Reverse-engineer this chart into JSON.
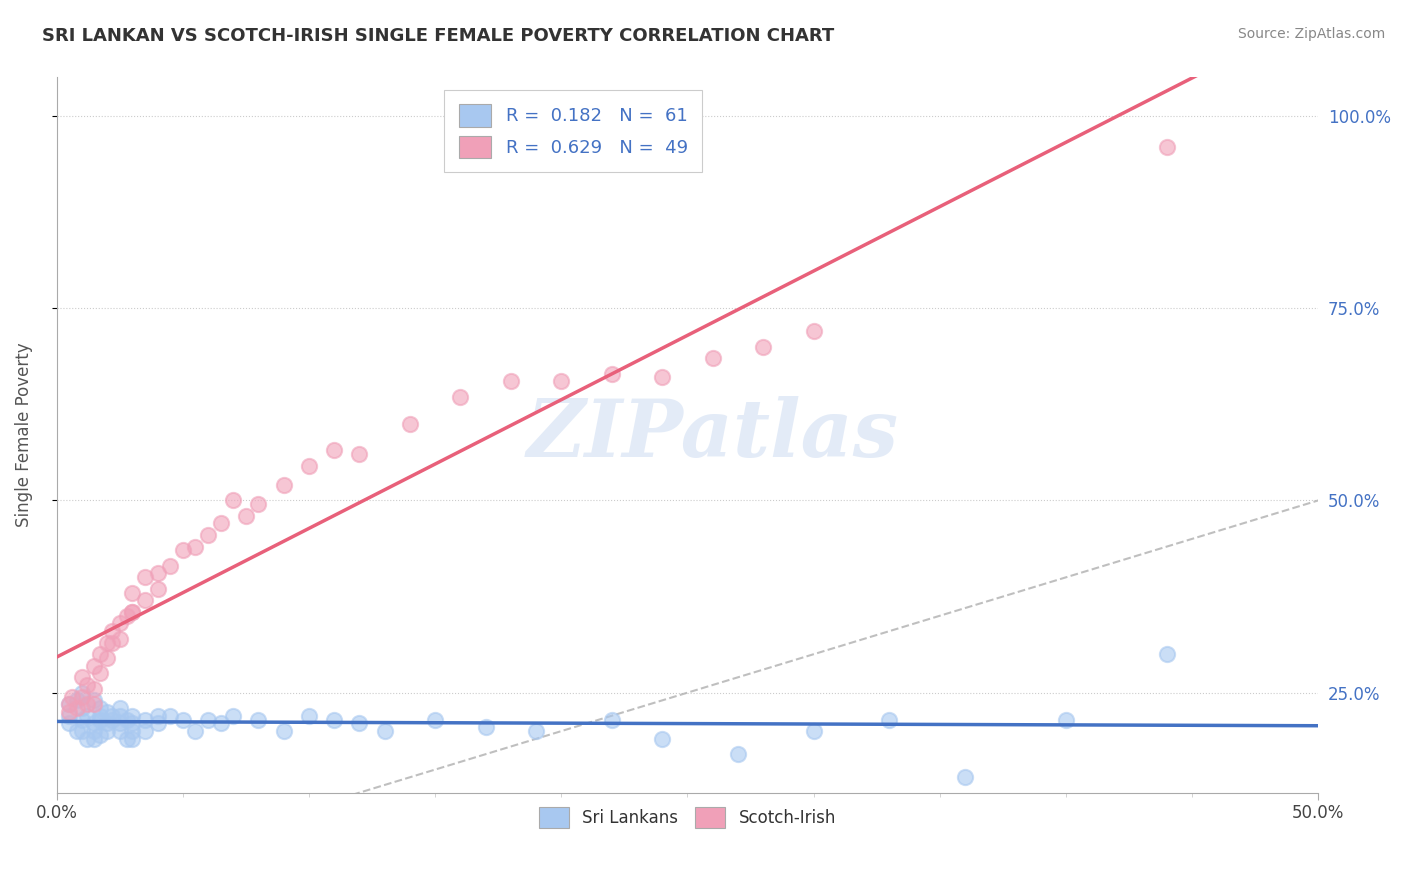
{
  "title": "SRI LANKAN VS SCOTCH-IRISH SINGLE FEMALE POVERTY CORRELATION CHART",
  "source": "Source: ZipAtlas.com",
  "ylabel": "Single Female Poverty",
  "xlim": [
    0.0,
    0.5
  ],
  "ylim": [
    0.12,
    1.05
  ],
  "sri_lankan_R": 0.182,
  "sri_lankan_N": 61,
  "scotch_irish_R": 0.629,
  "scotch_irish_N": 49,
  "sri_lankan_color": "#a8c8f0",
  "scotch_irish_color": "#f0a0b8",
  "sri_lankan_line_color": "#4472c4",
  "scotch_irish_line_color": "#e8607a",
  "watermark_color": "#c8d8f0",
  "sri_lankans_x": [
    0.005,
    0.005,
    0.005,
    0.008,
    0.008,
    0.01,
    0.01,
    0.01,
    0.01,
    0.012,
    0.012,
    0.015,
    0.015,
    0.015,
    0.015,
    0.017,
    0.017,
    0.017,
    0.017,
    0.02,
    0.02,
    0.02,
    0.022,
    0.022,
    0.025,
    0.025,
    0.025,
    0.025,
    0.028,
    0.028,
    0.03,
    0.03,
    0.03,
    0.03,
    0.035,
    0.035,
    0.04,
    0.04,
    0.045,
    0.05,
    0.055,
    0.06,
    0.065,
    0.07,
    0.08,
    0.09,
    0.1,
    0.11,
    0.12,
    0.13,
    0.15,
    0.17,
    0.19,
    0.22,
    0.24,
    0.27,
    0.3,
    0.33,
    0.36,
    0.4,
    0.44
  ],
  "sri_lankans_y": [
    0.235,
    0.22,
    0.21,
    0.24,
    0.2,
    0.25,
    0.23,
    0.215,
    0.2,
    0.22,
    0.19,
    0.24,
    0.21,
    0.2,
    0.19,
    0.215,
    0.23,
    0.22,
    0.195,
    0.21,
    0.2,
    0.225,
    0.22,
    0.215,
    0.23,
    0.21,
    0.2,
    0.22,
    0.215,
    0.19,
    0.21,
    0.22,
    0.2,
    0.19,
    0.215,
    0.2,
    0.22,
    0.21,
    0.22,
    0.215,
    0.2,
    0.215,
    0.21,
    0.22,
    0.215,
    0.2,
    0.22,
    0.215,
    0.21,
    0.2,
    0.215,
    0.205,
    0.2,
    0.215,
    0.19,
    0.17,
    0.2,
    0.215,
    0.14,
    0.215,
    0.3
  ],
  "scotch_irish_x": [
    0.005,
    0.005,
    0.006,
    0.008,
    0.01,
    0.01,
    0.012,
    0.012,
    0.015,
    0.015,
    0.015,
    0.017,
    0.017,
    0.02,
    0.02,
    0.022,
    0.022,
    0.025,
    0.025,
    0.028,
    0.03,
    0.03,
    0.03,
    0.035,
    0.035,
    0.04,
    0.04,
    0.045,
    0.05,
    0.055,
    0.06,
    0.065,
    0.07,
    0.075,
    0.08,
    0.09,
    0.1,
    0.11,
    0.12,
    0.14,
    0.16,
    0.18,
    0.2,
    0.22,
    0.24,
    0.26,
    0.28,
    0.3,
    0.44
  ],
  "scotch_irish_y": [
    0.235,
    0.225,
    0.245,
    0.23,
    0.245,
    0.27,
    0.26,
    0.235,
    0.285,
    0.255,
    0.235,
    0.3,
    0.275,
    0.315,
    0.295,
    0.315,
    0.33,
    0.34,
    0.32,
    0.35,
    0.355,
    0.38,
    0.355,
    0.4,
    0.37,
    0.405,
    0.385,
    0.415,
    0.435,
    0.44,
    0.455,
    0.47,
    0.5,
    0.48,
    0.495,
    0.52,
    0.545,
    0.565,
    0.56,
    0.6,
    0.635,
    0.655,
    0.655,
    0.665,
    0.66,
    0.685,
    0.7,
    0.72,
    0.96
  ]
}
